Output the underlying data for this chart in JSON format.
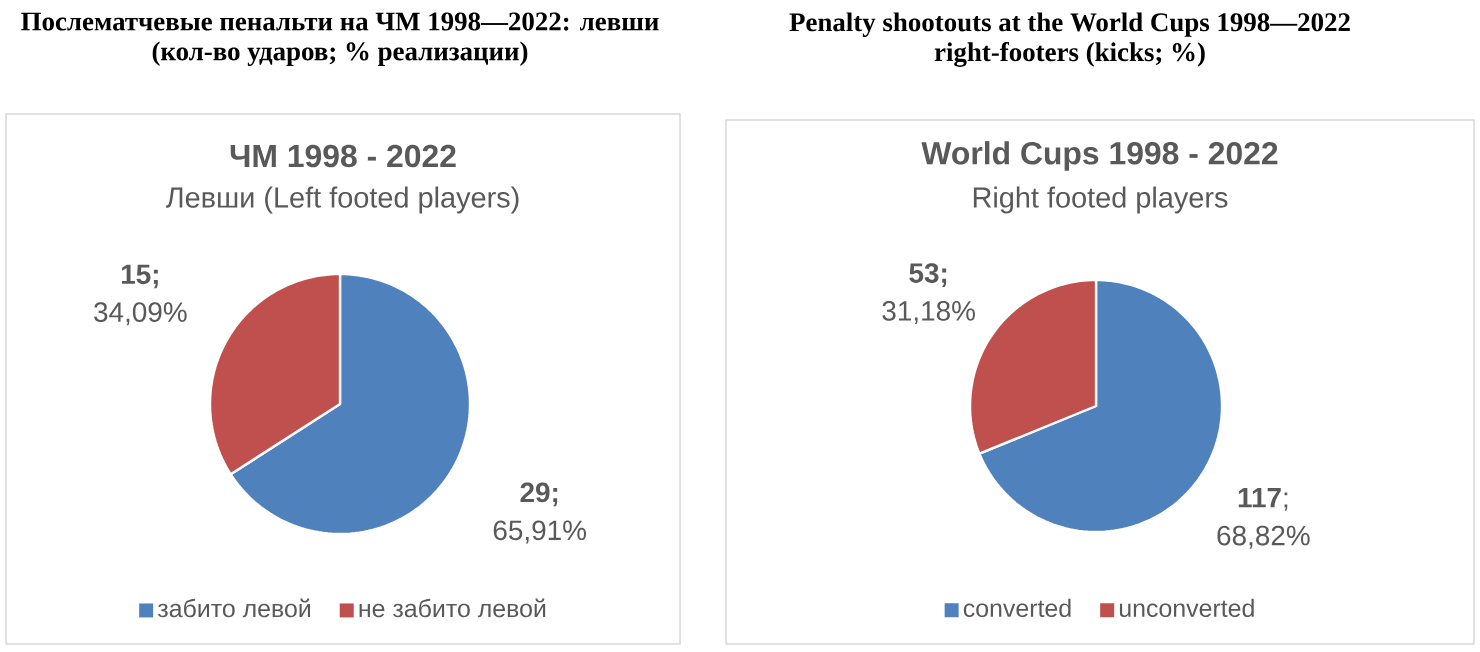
{
  "chart_data": [
    {
      "type": "pie",
      "title": "Послематчевые пенальти на ЧМ 1998—2022: левши (кол-во ударов; % реализации)",
      "subtitle": "ЧМ 1998 - 2022",
      "annotations": [
        "Левши (Left footed players)"
      ],
      "categories": [
        "забито левой",
        "не забито левой"
      ],
      "values": [
        29,
        15
      ],
      "colors": [
        "#4f81bd",
        "#c0504d"
      ],
      "value_labels": [
        "**29;** 65,91%",
        "**15;** 34,09%"
      ],
      "legend": "bottom"
    },
    {
      "type": "pie",
      "title": "Penalty shootouts at the World Cups 1998—2022 right-footers (kicks; %)",
      "subtitle": "World Cups 1998 - 2022",
      "annotations": [
        "Right footed players"
      ],
      "categories": [
        "converted",
        "unconverted"
      ],
      "values": [
        117,
        53
      ],
      "colors": [
        "#4f81bd",
        "#c0504d"
      ],
      "value_labels": [
        "**117**; 68,82%",
        "**53;** 31,18%"
      ],
      "legend": "bottom"
    }
  ]
}
